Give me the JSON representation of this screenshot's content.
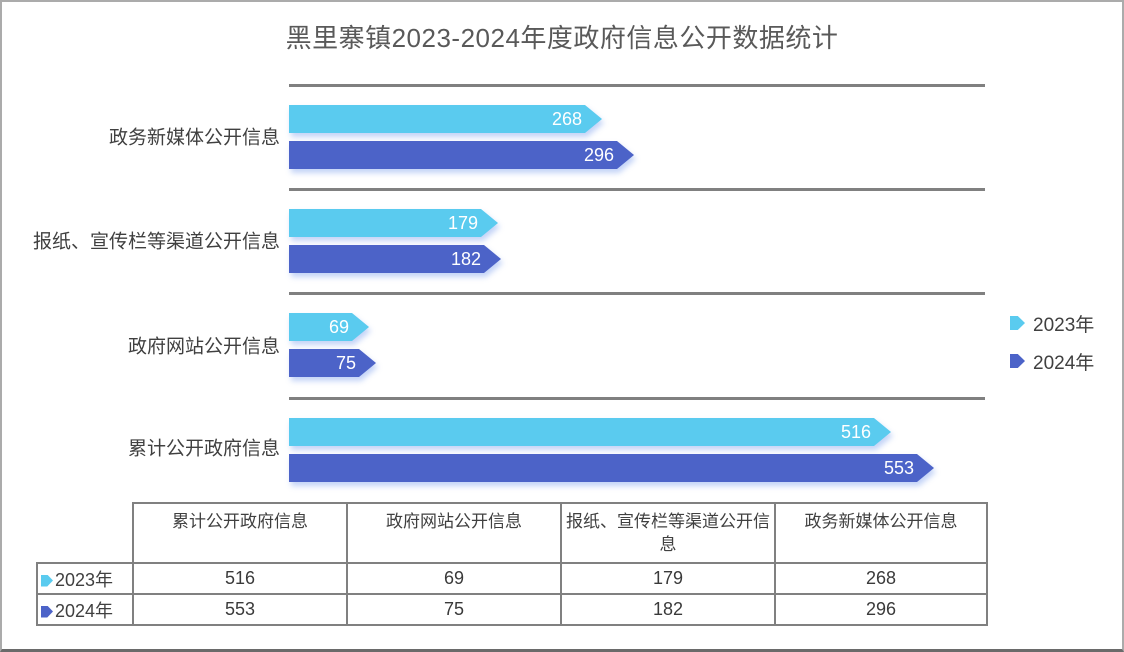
{
  "title": "黑里寨镇2023-2024年度政府信息公开数据统计",
  "colors": {
    "series_2023": "#5ACBEF",
    "series_2024": "#4C63C8",
    "gridline": "#808080",
    "title_text": "#595959",
    "label_text": "#404040",
    "table_border": "#808080",
    "bar_value_text": "#ffffff"
  },
  "chart_data": {
    "type": "bar",
    "orientation": "horizontal",
    "title": "黑里寨镇2023-2024年度政府信息公开数据统计",
    "categories": [
      "政务新媒体公开信息",
      "报纸、宣传栏等渠道公开信息",
      "政府网站公开信息",
      "累计公开政府信息"
    ],
    "series": [
      {
        "name": "2023年",
        "color": "#5ACBEF",
        "values": [
          268,
          179,
          69,
          516
        ]
      },
      {
        "name": "2024年",
        "color": "#4C63C8",
        "values": [
          296,
          182,
          75,
          553
        ]
      }
    ],
    "xlim": [
      0,
      553
    ],
    "value_labels": true,
    "grid": "horizontal-separators-only",
    "legend_position": "right"
  },
  "legend": {
    "items": [
      {
        "label": "2023年",
        "color": "#5ACBEF"
      },
      {
        "label": "2024年",
        "color": "#4C63C8"
      }
    ]
  },
  "table": {
    "corner_label": "",
    "headers": [
      "累计公开政府信息",
      "政府网站公开信息",
      "报纸、宣传栏等渠道公开信息",
      "政务新媒体公开信息"
    ],
    "rows": [
      {
        "label": "2023年",
        "marker_color": "#5ACBEF",
        "values": [
          "516",
          "69",
          "179",
          "268"
        ]
      },
      {
        "label": "2024年",
        "marker_color": "#4C63C8",
        "values": [
          "553",
          "75",
          "182",
          "296"
        ]
      }
    ]
  }
}
